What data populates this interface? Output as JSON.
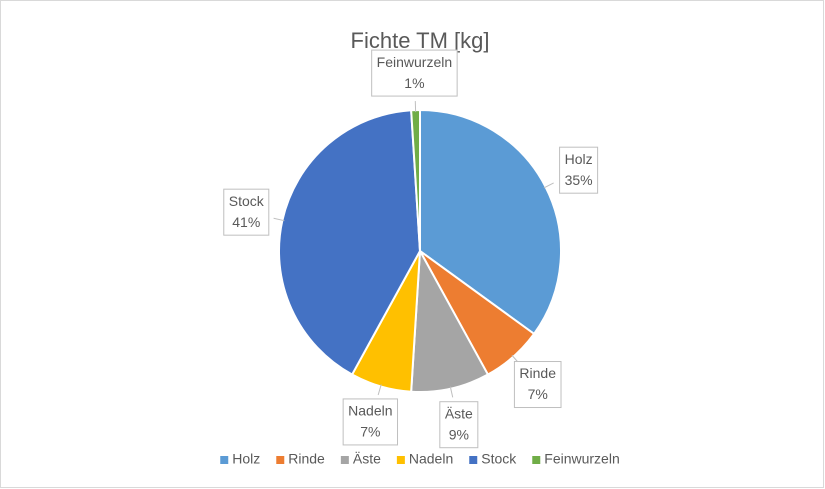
{
  "chart_data": {
    "type": "pie",
    "title": "Fichte TM [kg]",
    "categories": [
      "Holz",
      "Rinde",
      "Äste",
      "Nadeln",
      "Stock",
      "Feinwurzeln"
    ],
    "values": [
      35,
      7,
      9,
      7,
      41,
      1
    ],
    "value_labels": [
      "35%",
      "7%",
      "9%",
      "7%",
      "41%",
      "1%"
    ],
    "colors": [
      "#5b9bd5",
      "#ed7d31",
      "#a5a5a5",
      "#ffc000",
      "#4472c4",
      "#70ad47"
    ],
    "legend": "bottom"
  }
}
